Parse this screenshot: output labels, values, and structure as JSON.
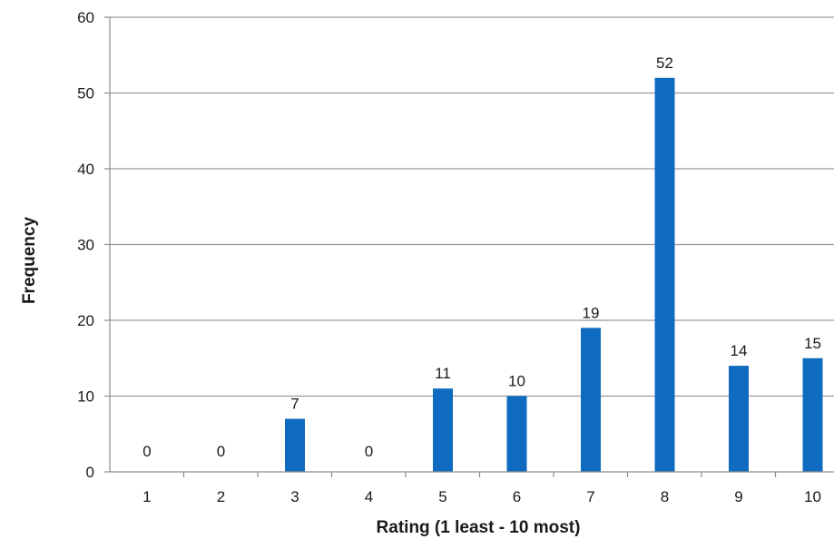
{
  "chart_data": {
    "type": "bar",
    "categories": [
      "1",
      "2",
      "3",
      "4",
      "5",
      "6",
      "7",
      "8",
      "9",
      "10"
    ],
    "values": [
      0,
      0,
      7,
      0,
      11,
      10,
      19,
      52,
      14,
      15
    ],
    "title": "",
    "xlabel": "Rating (1 least - 10 most)",
    "ylabel": "Frequency",
    "ylim": [
      0,
      60
    ],
    "yticks": [
      0,
      10,
      20,
      30,
      40,
      50,
      60
    ],
    "grid": true,
    "legend": "none",
    "data_labels": true,
    "colors": {
      "bar": "#0f6bbf",
      "grid": "#9a9a9a",
      "axis": "#8c8c8c"
    }
  }
}
